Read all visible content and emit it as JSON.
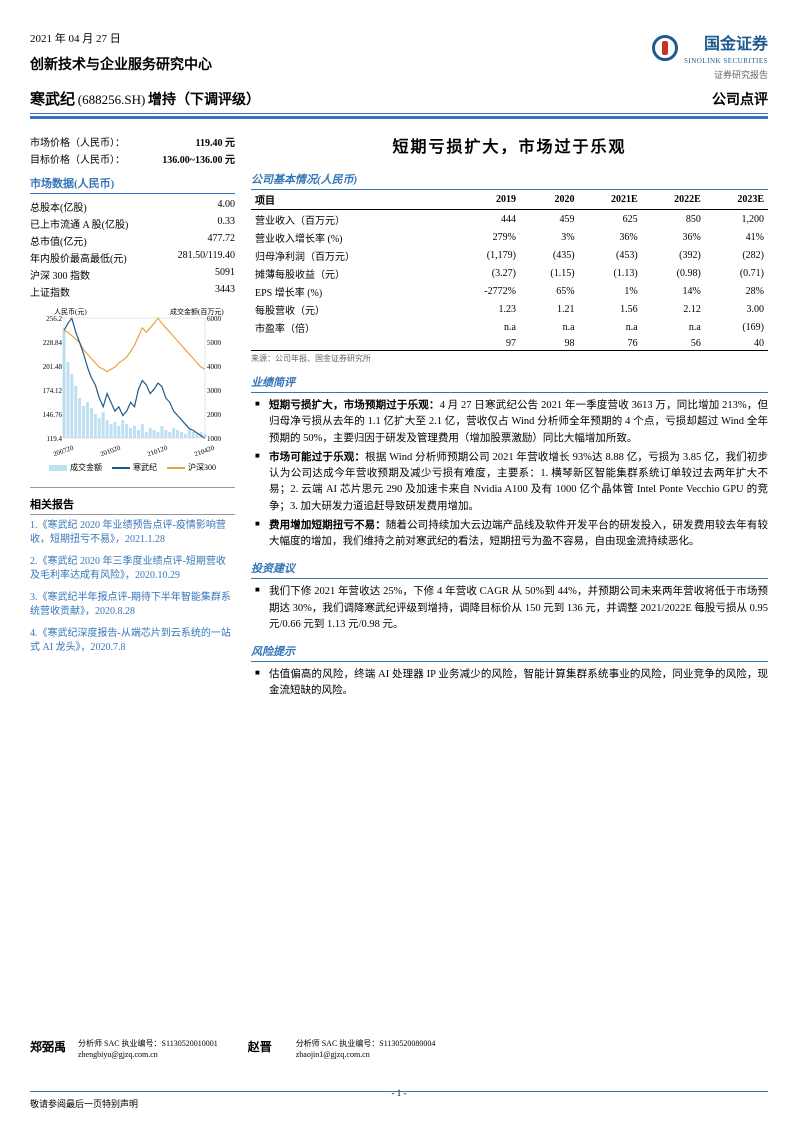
{
  "header": {
    "date": "2021 年 04 月 27 日",
    "dept": "创新技术与企业服务研究中心",
    "stock_name": "寒武纪",
    "stock_code": "(688256.SH)",
    "rating": "增持（下调评级）",
    "doc_type": "公司点评",
    "logo_cn": "国金证券",
    "logo_en": "SINOLINK SECURITIES",
    "logo_sub": "证券研究报告"
  },
  "left": {
    "price": {
      "label": "市场价格（人民币）：",
      "value": "119.40 元"
    },
    "target": {
      "label": "目标价格（人民币）：",
      "value": "136.00~136.00 元"
    },
    "market_h": "市场数据(人民币)",
    "market_rows": [
      {
        "k": "总股本(亿股)",
        "v": "4.00"
      },
      {
        "k": "已上市流通 A 股(亿股)",
        "v": "0.33"
      },
      {
        "k": "总市值(亿元)",
        "v": "477.72"
      },
      {
        "k": "年内股价最高最低(元)",
        "v": "281.50/119.40"
      },
      {
        "k": "沪深 300 指数",
        "v": "5091"
      },
      {
        "k": "上证指数",
        "v": "3443"
      }
    ],
    "chart": {
      "y_left_label": "人民币(元)",
      "y_right_label": "成交金额(百万元)",
      "y_left_ticks": [
        "256.2",
        "228.84",
        "201.48",
        "174.12",
        "146.76",
        "119.4"
      ],
      "y_right_ticks": [
        "6000",
        "5000",
        "4000",
        "3000",
        "2000",
        "1000"
      ],
      "x_ticks": [
        "200720",
        "201020",
        "210120",
        "210420"
      ],
      "bars": [
        5500,
        3800,
        3200,
        2600,
        2000,
        1600,
        1800,
        1500,
        1200,
        1000,
        1300,
        900,
        700,
        800,
        600,
        900,
        700,
        500,
        600,
        400,
        700,
        300,
        500,
        400,
        300,
        600,
        400,
        300,
        500,
        400,
        300,
        200,
        400,
        300,
        200,
        300,
        200
      ],
      "bar_color": "#bde0f2",
      "line1": [
        242,
        250,
        256,
        240,
        228,
        215,
        200,
        188,
        180,
        165,
        155,
        170,
        160,
        150,
        155,
        145,
        150,
        160,
        155,
        175,
        185,
        180,
        170,
        175,
        182,
        178,
        165,
        160,
        150,
        145,
        140,
        135,
        130,
        128,
        125,
        122,
        119
      ],
      "line1_color": "#1e5a8e",
      "line2": [
        242,
        240,
        236,
        232,
        228,
        220,
        215,
        210,
        205,
        200,
        198,
        195,
        198,
        200,
        205,
        208,
        212,
        218,
        225,
        235,
        245,
        240,
        245,
        250,
        256,
        250,
        245,
        240,
        235,
        230,
        225,
        220,
        215,
        210,
        205,
        200,
        198
      ],
      "line2_color": "#e8a23e",
      "legend": [
        {
          "label": "成交金额",
          "color": "#bde0f2",
          "type": "box"
        },
        {
          "label": "寒武纪",
          "color": "#1e5a8e",
          "type": "line"
        },
        {
          "label": "沪深300",
          "color": "#e8a23e",
          "type": "line"
        }
      ]
    },
    "reports_h": "相关报告",
    "reports": [
      {
        "t": "1.《寒武纪 2020 年业绩预告点评-疫情影响营收，短期扭亏不易》，",
        "d": "2021.1.28"
      },
      {
        "t": "2.《寒武纪 2020 年三季度业绩点评-短期营收及毛利率达成有风险》，",
        "d": "2020.10.29"
      },
      {
        "t": "3.《寒武纪半年报点评-期待下半年智能集群系统营收贡献》，",
        "d": "2020.8.28"
      },
      {
        "t": "4.《寒武纪深度报告-从端芯片到云系统的一站式 AI 龙头》，",
        "d": "2020.7.8"
      }
    ]
  },
  "main_title": "短期亏损扩大，市场过于乐观",
  "fin_h": "公司基本情况(人民币)",
  "fin_cols": [
    "项目",
    "2019",
    "2020",
    "2021E",
    "2022E",
    "2023E"
  ],
  "fin_rows": [
    [
      "营业收入（百万元）",
      "444",
      "459",
      "625",
      "850",
      "1,200"
    ],
    [
      "营业收入增长率 (%)",
      "279%",
      "3%",
      "36%",
      "36%",
      "41%"
    ],
    [
      "归母净利润（百万元）",
      "(1,179)",
      "(435)",
      "(453)",
      "(392)",
      "(282)"
    ],
    [
      "摊薄每股收益（元）",
      "(3.27)",
      "(1.15)",
      "(1.13)",
      "(0.98)",
      "(0.71)"
    ],
    [
      "EPS 增长率 (%)",
      "-2772%",
      "65%",
      "1%",
      "14%",
      "28%"
    ],
    [
      "每股营收（元）",
      "1.23",
      "1.21",
      "1.56",
      "2.12",
      "3.00"
    ],
    [
      "市盈率（倍）",
      "n.a",
      "n.a",
      "n.a",
      "n.a",
      "(169)"
    ],
    [
      "",
      "97",
      "98",
      "76",
      "56",
      "40"
    ]
  ],
  "fin_src": "来源：公司年报、国金证券研究所",
  "sections": [
    {
      "h": "业绩简评",
      "items": [
        "<b>短期亏损扩大，市场预期过于乐观：</b>4 月 27 日寒武纪公告 2021 年一季度营收 3613 万，同比增加 213%，但归母净亏损从去年的 1.1 亿扩大至 2.1 亿，营收仅占 Wind 分析师全年预期的 4 个点，亏损却超过 Wind 全年预期的 50%，主要归因于研发及管理费用（增加股票激励）同比大幅增加所致。",
        "<b>市场可能过于乐观：</b>根据 Wind 分析师预期公司 2021 年营收增长 93%达 8.88 亿，亏损为 3.85 亿，我们初步认为公司达成今年营收预期及减少亏损有难度，主要系：1. 横琴新区智能集群系统订单较过去两年扩大不易；2. 云端 AI 芯片思元 290 及加速卡来自 Nvidia A100 及有 1000 亿个晶体管 Intel Ponte Vecchio GPU 的竞争；3. 加大研发力道追赶导致研发费用增加。",
        "<b>费用增加短期扭亏不易：</b>随着公司持续加大云边端产品线及软件开发平台的研发投入，研发费用较去年有较大幅度的增加，我们维持之前对寒武纪的看法，短期扭亏为盈不容易，自由现金流持续恶化。"
      ]
    },
    {
      "h": "投资建议",
      "items": [
        "我们下修 2021 年营收达 25%，下修 4 年营收 CAGR 从 50%到 44%，并预期公司未来两年营收将低于市场预期达 30%，我们调降寒武纪评级到增持，调降目标价从 150 元到 136 元，并调整 2021/2022E 每股亏损从 0.95 元/0.66 元到 1.13 元/0.98 元。"
      ]
    },
    {
      "h": "风险提示",
      "items": [
        "估值偏高的风险，终端 AI 处理器 IP 业务减少的风险，智能计算集群系统事业的风险，同业竞争的风险，现金流短缺的风险。"
      ]
    }
  ],
  "analysts": [
    {
      "name": "郑弼禹",
      "sac": "分析师 SAC 执业编号：S1130520010001",
      "email": "zhengbiyu@gjzq.com.cn"
    },
    {
      "name": "赵晋",
      "sac": "分析师 SAC 执业编号：S1130520080004",
      "email": "zhaojin1@gjzq.com.cn"
    }
  ],
  "footer": {
    "note": "敬请参阅最后一页特别声明",
    "page": "- 1 -"
  }
}
